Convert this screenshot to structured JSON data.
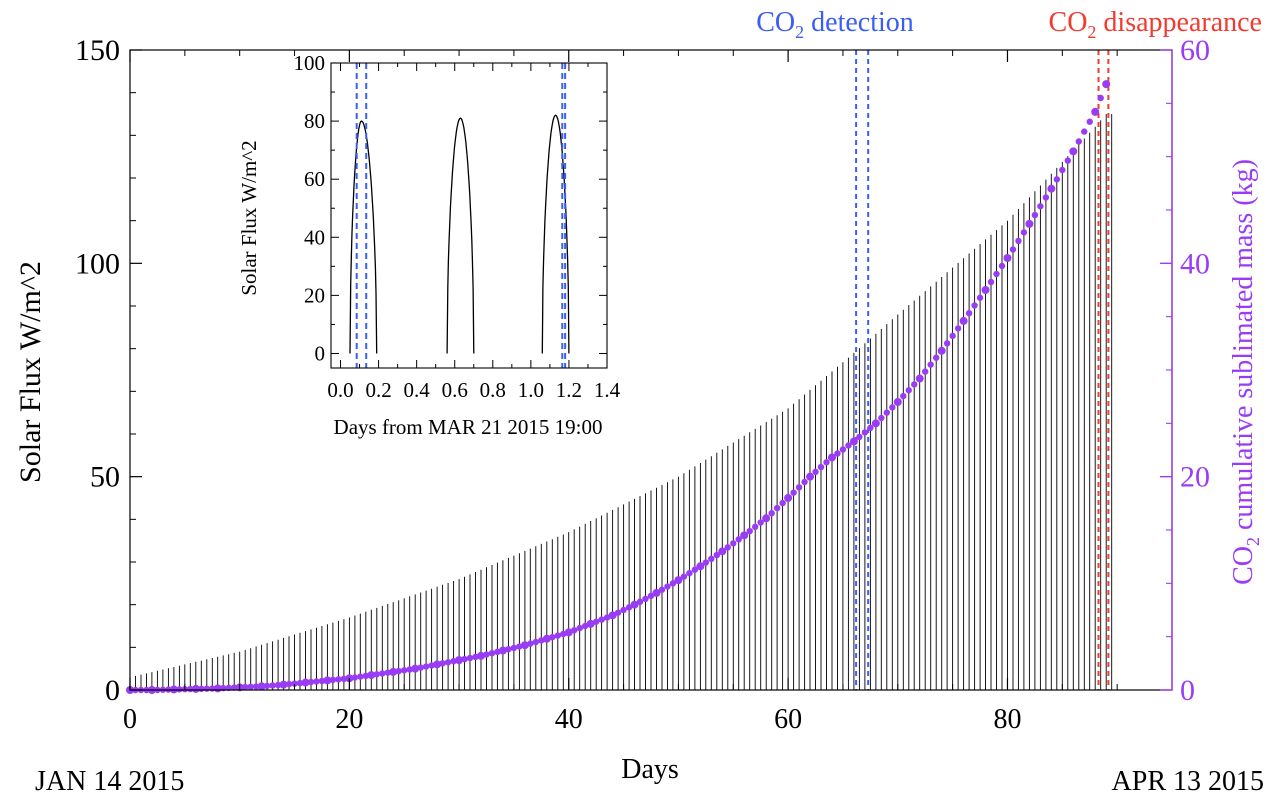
{
  "chart_data": [
    {
      "type": "line",
      "panel": "main",
      "xlabel": "Days",
      "ylabel": "Solar Flux W/m^2",
      "y2label_prefix": "CO",
      "y2label_sub": "2",
      "y2label_suffix": " cumulative sublimated mass (kg)",
      "xlim": [
        0,
        95
      ],
      "ylim": [
        0,
        150
      ],
      "y2lim": [
        0,
        60
      ],
      "x_ticks": [
        0,
        20,
        40,
        60,
        80
      ],
      "y_ticks": [
        0,
        50,
        100,
        150
      ],
      "y2_ticks": [
        0,
        20,
        40,
        60
      ],
      "x_tick_labels": [
        "0",
        "20",
        "40",
        "60",
        "80"
      ],
      "y_tick_labels": [
        "0",
        "50",
        "100",
        "150"
      ],
      "y2_tick_labels": [
        "0",
        "20",
        "40",
        "60"
      ],
      "start_date_label": "JAN 14 2015",
      "end_date_label": "APR 13 2015",
      "series": [
        {
          "kind": "diurnal flux peaks",
          "color": "#000000",
          "period_days": 0.5,
          "x_range": [
            0,
            89.5
          ],
          "peak_envelope": {
            "x": [
              0,
              10,
              20,
              30,
              40,
              50,
              60,
              66,
              70,
              80,
              88,
              89
            ],
            "y": [
              3,
              9,
              17,
              26,
              37,
              50,
              66,
              79,
              88,
              110,
              132,
              135
            ]
          }
        },
        {
          "kind": "CO2 cumulative sublimated mass (kg)",
          "color": "#9a3cf5",
          "axis": "right",
          "x": [
            0,
            2,
            4,
            6,
            8,
            10,
            12,
            14,
            16,
            18,
            20,
            22,
            24,
            26,
            28,
            30,
            32,
            34,
            36,
            38,
            40,
            42,
            44,
            46,
            48,
            50,
            52,
            54,
            56,
            58,
            60,
            62,
            64,
            66,
            68,
            70,
            72,
            74,
            76,
            78,
            80,
            82,
            84,
            86,
            88,
            89
          ],
          "y": [
            0,
            0,
            0.05,
            0.1,
            0.15,
            0.25,
            0.35,
            0.5,
            0.7,
            0.9,
            1.1,
            1.4,
            1.7,
            2.0,
            2.4,
            2.8,
            3.2,
            3.7,
            4.2,
            4.8,
            5.4,
            6.2,
            7.0,
            8.0,
            9.1,
            10.3,
            11.6,
            13.0,
            14.5,
            16.1,
            18.0,
            20.0,
            21.8,
            23.3,
            25.0,
            27.0,
            29.2,
            31.8,
            34.6,
            37.5,
            40.5,
            43.7,
            47.0,
            50.5,
            54.2,
            56.8
          ]
        }
      ],
      "annotations": [
        {
          "prefix": "CO",
          "sub": "2",
          "suffix": " detection",
          "color": "#3a5ef5",
          "x_lines": [
            66.2,
            67.3
          ]
        },
        {
          "prefix": "CO",
          "sub": "2",
          "suffix": " disappearance",
          "color": "#f23a2e",
          "x_lines": [
            88.3,
            89.2
          ]
        }
      ]
    },
    {
      "type": "line",
      "panel": "inset",
      "xlabel": "Days from MAR 21 2015 19:00",
      "ylabel": "Solar Flux W/m^2",
      "xlim": [
        -0.05,
        1.4
      ],
      "ylim": [
        -5,
        100
      ],
      "x_ticks": [
        0.0,
        0.2,
        0.4,
        0.6,
        0.8,
        1.0,
        1.2,
        1.4
      ],
      "y_ticks": [
        0,
        20,
        40,
        60,
        80,
        100
      ],
      "x_tick_labels": [
        "0.0",
        "0.2",
        "0.4",
        "0.6",
        "0.8",
        "1.0",
        "1.2",
        "1.4"
      ],
      "y_tick_labels": [
        "0",
        "20",
        "40",
        "60",
        "80",
        "100"
      ],
      "series": [
        {
          "kind": "solar flux arcs",
          "color": "#000000",
          "arcs": [
            {
              "start": 0.05,
              "end": 0.19,
              "peak_x": 0.11,
              "peak": 80
            },
            {
              "start": 0.56,
              "end": 0.7,
              "peak_x": 0.63,
              "peak": 81
            },
            {
              "start": 1.06,
              "end": 1.2,
              "peak_x": 1.13,
              "peak": 82
            }
          ]
        }
      ],
      "vlines": {
        "color": "#3a5ef5",
        "x": [
          0.085,
          0.135,
          1.165,
          1.18
        ]
      }
    }
  ]
}
